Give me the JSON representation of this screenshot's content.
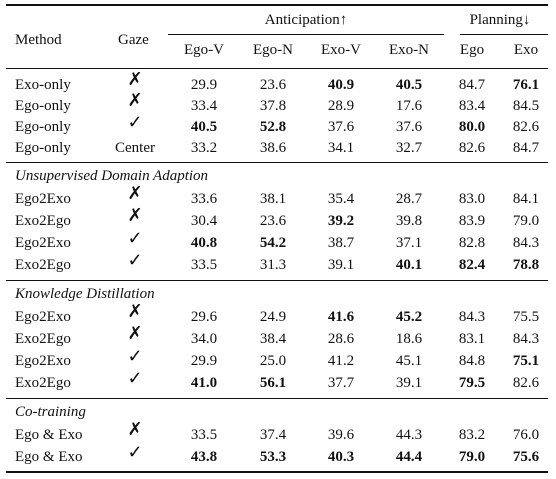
{
  "table": {
    "headers": {
      "method": "Method",
      "gaze": "Gaze",
      "anticipation": "Anticipation↑",
      "planning": "Planning↓",
      "ego_v": "Ego-V",
      "ego_n": "Ego-N",
      "exo_v": "Exo-V",
      "exo_n": "Exo-N",
      "ego": "Ego",
      "exo": "Exo"
    },
    "sections": {
      "uda": "Unsupervised Domain Adaption",
      "kd": "Knowledge Distillation",
      "ct": "Co-training"
    },
    "rows": [
      {
        "method": "Exo-only",
        "gaze": "✗",
        "ego_v": "29.9",
        "ego_n": "23.6",
        "exo_v": "40.9",
        "exo_n": "40.5",
        "ego": "84.7",
        "exo": "76.1"
      },
      {
        "method": "Ego-only",
        "gaze": "✗",
        "ego_v": "33.4",
        "ego_n": "37.8",
        "exo_v": "28.9",
        "exo_n": "17.6",
        "ego": "83.4",
        "exo": "84.5"
      },
      {
        "method": "Ego-only",
        "gaze": "✓",
        "ego_v": "40.5",
        "ego_n": "52.8",
        "exo_v": "37.6",
        "exo_n": "37.6",
        "ego": "80.0",
        "exo": "82.6"
      },
      {
        "method": "Ego-only",
        "gaze": "Center",
        "ego_v": "33.2",
        "ego_n": "38.6",
        "exo_v": "34.1",
        "exo_n": "32.7",
        "ego": "82.6",
        "exo": "84.7"
      },
      {
        "method": "Ego2Exo",
        "gaze": "✗",
        "ego_v": "33.6",
        "ego_n": "38.1",
        "exo_v": "35.4",
        "exo_n": "28.7",
        "ego": "83.0",
        "exo": "84.1"
      },
      {
        "method": "Exo2Ego",
        "gaze": "✗",
        "ego_v": "30.4",
        "ego_n": "23.6",
        "exo_v": "39.2",
        "exo_n": "39.8",
        "ego": "83.9",
        "exo": "79.0"
      },
      {
        "method": "Ego2Exo",
        "gaze": "✓",
        "ego_v": "40.8",
        "ego_n": "54.2",
        "exo_v": "38.7",
        "exo_n": "37.1",
        "ego": "82.8",
        "exo": "84.3"
      },
      {
        "method": "Exo2Ego",
        "gaze": "✓",
        "ego_v": "33.5",
        "ego_n": "31.3",
        "exo_v": "39.1",
        "exo_n": "40.1",
        "ego": "82.4",
        "exo": "78.8"
      },
      {
        "method": "Ego2Exo",
        "gaze": "✗",
        "ego_v": "29.6",
        "ego_n": "24.9",
        "exo_v": "41.6",
        "exo_n": "45.2",
        "ego": "84.3",
        "exo": "75.5"
      },
      {
        "method": "Exo2Ego",
        "gaze": "✗",
        "ego_v": "34.0",
        "ego_n": "38.4",
        "exo_v": "28.6",
        "exo_n": "18.6",
        "ego": "83.1",
        "exo": "84.3"
      },
      {
        "method": "Ego2Exo",
        "gaze": "✓",
        "ego_v": "29.9",
        "ego_n": "25.0",
        "exo_v": "41.2",
        "exo_n": "45.1",
        "ego": "84.8",
        "exo": "75.1"
      },
      {
        "method": "Exo2Ego",
        "gaze": "✓",
        "ego_v": "41.0",
        "ego_n": "56.1",
        "exo_v": "37.7",
        "exo_n": "39.1",
        "ego": "79.5",
        "exo": "82.6"
      },
      {
        "method": "Ego & Exo",
        "gaze": "✗",
        "ego_v": "33.5",
        "ego_n": "37.4",
        "exo_v": "39.6",
        "exo_n": "44.3",
        "ego": "83.2",
        "exo": "76.0"
      },
      {
        "method": "Ego & Exo",
        "gaze": "✓",
        "ego_v": "43.8",
        "ego_n": "53.3",
        "exo_v": "40.3",
        "exo_n": "44.4",
        "ego": "79.0",
        "exo": "75.6"
      }
    ]
  }
}
